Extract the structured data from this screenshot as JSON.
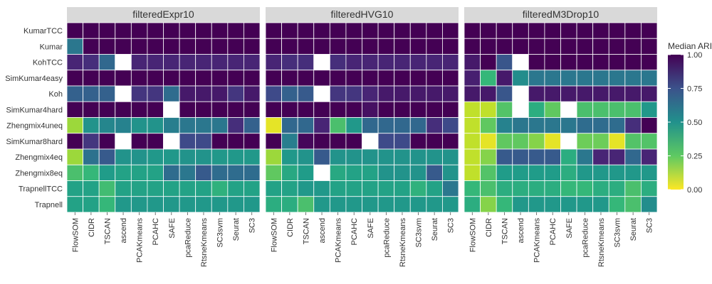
{
  "chart_data": {
    "type": "heatmap",
    "legend": {
      "title": "Median ARI",
      "ticks": [
        "1.00",
        "0.75",
        "0.50",
        "0.25",
        "0.00"
      ],
      "tick_values": [
        1.0,
        0.75,
        0.5,
        0.25,
        0.0
      ],
      "range": [
        0,
        1
      ],
      "position": "right"
    },
    "rows": [
      "KumarTCC",
      "Kumar",
      "KohTCC",
      "SimKumar4easy",
      "Koh",
      "SimKumar4hard",
      "Zhengmix4uneq",
      "SimKumar8hard",
      "Zhengmix4eq",
      "Zhengmix8eq",
      "TrapnellTCC",
      "Trapnell"
    ],
    "columns": [
      "FlowSOM",
      "CIDR",
      "TSCAN",
      "ascend",
      "PCAKmeans",
      "PCAHC",
      "SAFE",
      "pcaReduce",
      "RtsneKmeans",
      "SC3svm",
      "Seurat",
      "SC3"
    ],
    "panels": [
      {
        "title": "filteredExpr10",
        "values": [
          [
            1.0,
            1.0,
            1.0,
            1.0,
            1.0,
            1.0,
            1.0,
            1.0,
            1.0,
            1.0,
            1.0,
            1.0
          ],
          [
            0.55,
            1.0,
            1.0,
            1.0,
            1.0,
            1.0,
            1.0,
            1.0,
            1.0,
            1.0,
            1.0,
            1.0
          ],
          [
            0.88,
            0.85,
            0.62,
            null,
            0.88,
            0.88,
            0.88,
            0.88,
            0.88,
            0.88,
            0.88,
            0.88
          ],
          [
            1.0,
            1.0,
            1.0,
            1.0,
            1.0,
            1.0,
            1.0,
            1.0,
            1.0,
            1.0,
            1.0,
            1.0
          ],
          [
            0.65,
            0.65,
            0.65,
            null,
            0.82,
            0.82,
            0.6,
            0.92,
            0.92,
            0.92,
            0.82,
            0.92
          ],
          [
            1.0,
            1.0,
            1.0,
            1.0,
            1.0,
            1.0,
            null,
            1.0,
            1.0,
            1.0,
            1.0,
            1.0
          ],
          [
            0.08,
            0.42,
            0.48,
            0.5,
            0.42,
            0.42,
            0.52,
            0.55,
            0.55,
            0.55,
            0.85,
            0.65
          ],
          [
            1.0,
            0.82,
            1.0,
            null,
            1.0,
            1.0,
            null,
            0.75,
            0.75,
            1.0,
            1.0,
            1.0
          ],
          [
            0.08,
            0.58,
            0.68,
            0.42,
            0.42,
            0.4,
            0.4,
            0.42,
            0.42,
            0.4,
            0.4,
            0.4
          ],
          [
            0.2,
            0.25,
            0.38,
            0.35,
            0.35,
            0.35,
            0.6,
            0.55,
            0.68,
            0.6,
            0.6,
            0.6
          ],
          [
            0.35,
            0.35,
            0.22,
            0.35,
            0.35,
            0.35,
            0.35,
            0.35,
            0.35,
            0.28,
            0.35,
            0.35
          ],
          [
            0.35,
            0.35,
            0.25,
            0.4,
            0.4,
            0.4,
            0.4,
            0.4,
            0.4,
            0.4,
            0.4,
            0.4
          ]
        ]
      },
      {
        "title": "filteredHVG10",
        "values": [
          [
            1.0,
            1.0,
            1.0,
            1.0,
            1.0,
            1.0,
            1.0,
            1.0,
            1.0,
            1.0,
            1.0,
            1.0
          ],
          [
            1.0,
            1.0,
            1.0,
            1.0,
            1.0,
            1.0,
            1.0,
            1.0,
            1.0,
            1.0,
            1.0,
            1.0
          ],
          [
            0.88,
            0.85,
            0.85,
            null,
            0.85,
            0.88,
            0.88,
            0.88,
            0.88,
            0.88,
            0.88,
            0.88
          ],
          [
            1.0,
            1.0,
            1.0,
            1.0,
            1.0,
            1.0,
            1.0,
            1.0,
            1.0,
            1.0,
            1.0,
            1.0
          ],
          [
            0.75,
            0.65,
            0.68,
            null,
            0.82,
            0.82,
            0.88,
            0.92,
            0.92,
            0.92,
            0.92,
            0.92
          ],
          [
            1.0,
            1.0,
            1.0,
            1.0,
            1.0,
            1.0,
            0.95,
            1.0,
            1.0,
            1.0,
            1.0,
            1.0
          ],
          [
            0.02,
            0.62,
            0.62,
            0.88,
            0.2,
            0.4,
            0.62,
            0.62,
            0.62,
            0.62,
            0.85,
            0.75
          ],
          [
            1.0,
            0.52,
            0.98,
            1.0,
            1.0,
            1.0,
            null,
            0.75,
            0.75,
            1.0,
            1.0,
            1.0
          ],
          [
            0.08,
            0.4,
            0.42,
            0.68,
            0.42,
            0.42,
            0.42,
            0.42,
            0.42,
            0.42,
            0.42,
            0.42
          ],
          [
            0.15,
            0.32,
            0.38,
            null,
            0.32,
            0.35,
            0.35,
            0.42,
            0.42,
            0.42,
            0.68,
            0.42
          ],
          [
            0.35,
            0.35,
            0.4,
            0.4,
            0.35,
            0.35,
            0.35,
            0.35,
            0.35,
            0.28,
            0.35,
            0.55
          ],
          [
            0.3,
            0.3,
            0.2,
            0.4,
            0.4,
            0.4,
            0.4,
            0.4,
            0.4,
            0.4,
            0.4,
            0.4
          ]
        ]
      },
      {
        "title": "filteredM3Drop10",
        "values": [
          [
            1.0,
            1.0,
            1.0,
            1.0,
            1.0,
            1.0,
            1.0,
            1.0,
            1.0,
            1.0,
            1.0,
            1.0
          ],
          [
            1.0,
            1.0,
            1.0,
            1.0,
            1.0,
            1.0,
            1.0,
            1.0,
            1.0,
            1.0,
            1.0,
            1.0
          ],
          [
            0.92,
            1.0,
            0.7,
            null,
            1.0,
            1.0,
            1.0,
            1.0,
            1.0,
            1.0,
            1.0,
            1.0
          ],
          [
            0.9,
            0.25,
            0.92,
            0.45,
            0.55,
            0.55,
            0.55,
            0.55,
            0.55,
            0.55,
            0.55,
            0.55
          ],
          [
            0.92,
            0.92,
            0.7,
            null,
            0.92,
            0.92,
            0.92,
            0.92,
            0.92,
            0.92,
            0.92,
            0.92
          ],
          [
            0.05,
            0.05,
            0.18,
            null,
            0.3,
            0.15,
            null,
            0.2,
            0.2,
            0.2,
            0.2,
            0.4
          ],
          [
            0.05,
            0.15,
            0.5,
            0.55,
            0.55,
            0.55,
            0.55,
            0.6,
            0.6,
            0.6,
            0.85,
            1.0
          ],
          [
            0.05,
            0.02,
            0.15,
            0.15,
            0.1,
            0.02,
            null,
            0.12,
            0.12,
            0.02,
            0.18,
            0.18
          ],
          [
            0.05,
            0.1,
            0.68,
            0.68,
            0.68,
            0.68,
            0.3,
            0.55,
            0.88,
            0.88,
            0.62,
            0.88
          ],
          [
            0.05,
            0.18,
            0.38,
            0.38,
            0.38,
            0.38,
            0.3,
            0.4,
            0.4,
            0.4,
            0.4,
            0.4
          ],
          [
            0.25,
            0.2,
            0.3,
            0.3,
            0.3,
            0.3,
            0.25,
            0.25,
            0.3,
            0.3,
            0.2,
            0.3
          ],
          [
            0.3,
            0.1,
            0.25,
            0.4,
            0.4,
            0.4,
            0.4,
            0.4,
            0.4,
            0.25,
            0.2,
            0.45
          ]
        ]
      }
    ]
  }
}
